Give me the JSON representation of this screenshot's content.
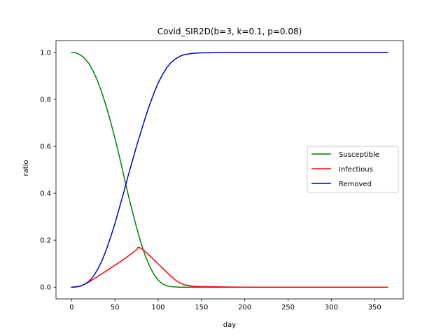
{
  "chart_data": {
    "type": "line",
    "title": "Covid_SIR2D(b=3, k=0.1, p=0.08)",
    "xlabel": "day",
    "ylabel": "ratio",
    "xlim": [
      -18,
      383
    ],
    "ylim": [
      -0.05,
      1.05
    ],
    "xticks": [
      0,
      50,
      100,
      150,
      200,
      250,
      300,
      350
    ],
    "yticks": [
      0.0,
      0.2,
      0.4,
      0.6,
      0.8,
      1.0
    ],
    "xtick_labels": [
      "0",
      "50",
      "100",
      "150",
      "200",
      "250",
      "300",
      "350"
    ],
    "ytick_labels": [
      "0.0",
      "0.2",
      "0.4",
      "0.6",
      "0.8",
      "1.0"
    ],
    "grid": false,
    "legend_position": "center-right",
    "series": [
      {
        "name": "Susceptible",
        "color": "#008000",
        "x": [
          0,
          5,
          10,
          15,
          20,
          25,
          30,
          35,
          40,
          45,
          50,
          55,
          60,
          65,
          70,
          75,
          80,
          85,
          90,
          95,
          100,
          105,
          110,
          115,
          120,
          125,
          130,
          140,
          150,
          200,
          250,
          300,
          365
        ],
        "y": [
          1.0,
          0.998,
          0.99,
          0.975,
          0.952,
          0.92,
          0.878,
          0.828,
          0.77,
          0.705,
          0.635,
          0.56,
          0.48,
          0.4,
          0.325,
          0.255,
          0.19,
          0.135,
          0.09,
          0.055,
          0.03,
          0.014,
          0.006,
          0.002,
          0.001,
          0.0,
          0.0,
          0.0,
          0.0,
          0.0,
          0.0,
          0.0,
          0.0
        ]
      },
      {
        "name": "Infectious",
        "color": "#ff0000",
        "x": [
          0,
          5,
          10,
          15,
          20,
          25,
          30,
          35,
          40,
          45,
          50,
          55,
          60,
          65,
          70,
          75,
          77,
          80,
          85,
          90,
          95,
          100,
          105,
          110,
          115,
          120,
          125,
          130,
          140,
          150,
          200,
          250,
          300,
          365
        ],
        "y": [
          0.0,
          0.001,
          0.005,
          0.012,
          0.022,
          0.033,
          0.045,
          0.057,
          0.069,
          0.081,
          0.093,
          0.105,
          0.118,
          0.131,
          0.145,
          0.16,
          0.17,
          0.166,
          0.152,
          0.135,
          0.117,
          0.099,
          0.081,
          0.063,
          0.046,
          0.03,
          0.018,
          0.01,
          0.004,
          0.002,
          0.0,
          0.0,
          0.0,
          0.0
        ]
      },
      {
        "name": "Removed",
        "color": "#0000cc",
        "x": [
          0,
          5,
          10,
          15,
          20,
          25,
          30,
          35,
          40,
          45,
          50,
          55,
          60,
          65,
          70,
          75,
          80,
          85,
          90,
          95,
          100,
          105,
          110,
          115,
          120,
          125,
          130,
          140,
          150,
          200,
          250,
          300,
          365
        ],
        "y": [
          0.0,
          0.001,
          0.004,
          0.012,
          0.025,
          0.045,
          0.075,
          0.112,
          0.158,
          0.212,
          0.27,
          0.335,
          0.4,
          0.47,
          0.535,
          0.6,
          0.66,
          0.72,
          0.775,
          0.825,
          0.87,
          0.905,
          0.935,
          0.957,
          0.972,
          0.983,
          0.99,
          0.996,
          0.998,
          1.0,
          1.0,
          1.0,
          1.0
        ]
      }
    ]
  }
}
